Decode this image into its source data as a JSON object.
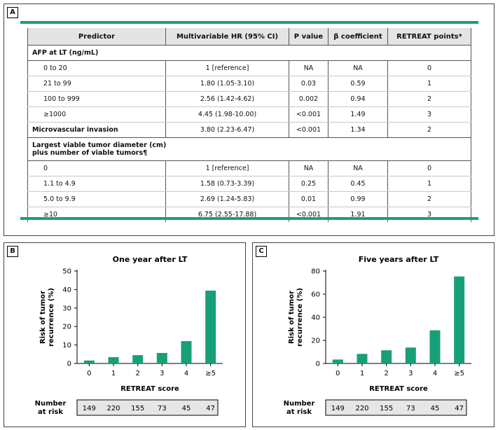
{
  "panels": {
    "a": "A",
    "b": "B",
    "c": "C"
  },
  "table": {
    "headers": [
      "Predictor",
      "Multivariable HR (95% CI)",
      "P value",
      "β coefficient",
      "RETREAT points*"
    ],
    "rows": [
      {
        "kind": "section",
        "predictor": "AFP at LT (ng/mL)",
        "hr": "",
        "p": "",
        "beta": "",
        "points": ""
      },
      {
        "kind": "item",
        "predictor": "0 to 20",
        "hr": "1 [reference]",
        "p": "NA",
        "beta": "NA",
        "points": "0"
      },
      {
        "kind": "item",
        "predictor": "21 to 99",
        "hr": "1.80 (1.05-3.10)",
        "p": "0.03",
        "beta": "0.59",
        "points": "1"
      },
      {
        "kind": "item",
        "predictor": "100 to 999",
        "hr": "2.56 (1.42-4.62)",
        "p": "0.002",
        "beta": "0.94",
        "points": "2"
      },
      {
        "kind": "item",
        "predictor": "≥1000",
        "hr": "4.45 (1.98-10.00)",
        "p": "<0.001",
        "beta": "1.49",
        "points": "3"
      },
      {
        "kind": "main",
        "predictor": "Microvascular invasion",
        "hr": "3.80 (2.23-6.47)",
        "p": "<0.001",
        "beta": "1.34",
        "points": "2"
      },
      {
        "kind": "section2",
        "predictor": "Largest viable tumor diameter (cm)",
        "predictor2": "plus number of viable tumors¶",
        "hr": "",
        "p": "",
        "beta": "",
        "points": ""
      },
      {
        "kind": "item",
        "predictor": "0",
        "hr": "1 [reference]",
        "p": "NA",
        "beta": "NA",
        "points": "0"
      },
      {
        "kind": "item",
        "predictor": "1.1 to 4.9",
        "hr": "1.58 (0.73-3.39)",
        "p": "0.25",
        "beta": "0.45",
        "points": "1"
      },
      {
        "kind": "item",
        "predictor": "5.0 to 9.9",
        "hr": "2.69 (1.24-5.83)",
        "p": "0.01",
        "beta": "0.99",
        "points": "2"
      },
      {
        "kind": "item",
        "predictor": "≥10",
        "hr": "6.75 (2.55-17.88)",
        "p": "<0.001",
        "beta": "1.91",
        "points": "3"
      }
    ]
  },
  "colors": {
    "accent": "#17a078",
    "bar": "#17a078",
    "header_bg": "#e4e4e4",
    "risk_bg": "#e6e6e6"
  },
  "chart_data": [
    {
      "type": "bar",
      "title": "One year after LT",
      "xlabel": "RETREAT score",
      "ylabel_line1": "Risk of tumor",
      "ylabel_line2": "recurrence (%)",
      "categories": [
        "0",
        "1",
        "2",
        "3",
        "4",
        "≥5"
      ],
      "values": [
        1.6,
        3.4,
        4.5,
        5.7,
        12.1,
        39.4
      ],
      "ylim": [
        0,
        50
      ],
      "yticks": [
        0,
        10,
        20,
        30,
        40,
        50
      ],
      "risk_label_line1": "Number",
      "risk_label_line2": "at risk",
      "at_risk": [
        "149",
        "220",
        "155",
        "73",
        "45",
        "47"
      ]
    },
    {
      "type": "bar",
      "title": "Five years after LT",
      "xlabel": "RETREAT score",
      "ylabel_line1": "Risk of tumor",
      "ylabel_line2": "recurrence (%)",
      "categories": [
        "0",
        "1",
        "2",
        "3",
        "4",
        "≥5"
      ],
      "values": [
        3.4,
        8.3,
        11.4,
        13.8,
        28.7,
        75.3
      ],
      "ylim": [
        0,
        80
      ],
      "yticks": [
        0,
        20,
        40,
        60,
        80
      ],
      "risk_label_line1": "Number",
      "risk_label_line2": "at risk",
      "at_risk": [
        "149",
        "220",
        "155",
        "73",
        "45",
        "47"
      ]
    }
  ]
}
